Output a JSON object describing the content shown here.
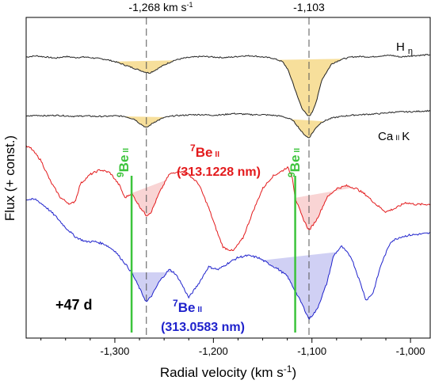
{
  "chart_data": {
    "type": "line",
    "xlabel": "Radial velocity (km s-1)",
    "xlabel_main": "Radial velocity (km s",
    "xlabel_sup": "-1",
    "xlabel_close": ")",
    "ylabel": "Flux (+ const.)",
    "xlim": [
      -1390,
      -980
    ],
    "x_ticks": [
      -1300,
      -1200,
      -1100,
      -1000
    ],
    "x_tick_labels": [
      "-1,300",
      "-1,200",
      "-1,100",
      "-1,000"
    ],
    "dashed_lines": [
      {
        "x": -1268,
        "label_main": "-1,268 km s",
        "label_sup": "-1"
      },
      {
        "x": -1103,
        "label_main": "-1,103",
        "label_sup": ""
      }
    ],
    "be9_marks": [
      {
        "x": -1283,
        "label_sup": "9",
        "label_main": "Be",
        "label_ion": "II"
      },
      {
        "x": -1117,
        "label_sup": "9",
        "label_main": "Be",
        "label_ion": "II"
      }
    ],
    "epoch_label": "+47 d",
    "series": [
      {
        "name": "H η",
        "name_main": "H",
        "name_sub": "η",
        "color": "#222222",
        "fill_color": "#f6d98a",
        "x": [
          -1390,
          -1380,
          -1370,
          -1360,
          -1350,
          -1340,
          -1330,
          -1320,
          -1310,
          -1300,
          -1290,
          -1280,
          -1270,
          -1265,
          -1260,
          -1250,
          -1240,
          -1230,
          -1220,
          -1210,
          -1200,
          -1190,
          -1180,
          -1170,
          -1160,
          -1150,
          -1140,
          -1130,
          -1125,
          -1120,
          -1115,
          -1110,
          -1105,
          -1103,
          -1100,
          -1095,
          -1090,
          -1080,
          -1070,
          -1060,
          -1050,
          -1040,
          -1030,
          -1020,
          -1010,
          -1000,
          -990,
          -980
        ],
        "flux": [
          0.0,
          0.02,
          0.0,
          -0.02,
          0.01,
          -0.01,
          0.0,
          -0.02,
          -0.04,
          -0.08,
          -0.14,
          -0.2,
          -0.26,
          -0.28,
          -0.24,
          -0.14,
          -0.06,
          -0.02,
          0.0,
          0.01,
          0.0,
          -0.01,
          0.0,
          0.02,
          0.02,
          0.0,
          -0.02,
          -0.08,
          -0.2,
          -0.42,
          -0.68,
          -0.9,
          -1.02,
          -1.04,
          -0.98,
          -0.75,
          -0.4,
          -0.12,
          -0.04,
          0.0,
          0.01,
          0.0,
          0.02,
          0.03,
          0.0,
          0.02,
          0.03,
          0.04
        ]
      },
      {
        "name": "Ca II K",
        "name_main": "Ca",
        "name_ion": "II",
        "name_after": "K",
        "color": "#222222",
        "fill_color": "#f6d98a",
        "x": [
          -1390,
          -1380,
          -1370,
          -1360,
          -1350,
          -1340,
          -1330,
          -1320,
          -1310,
          -1300,
          -1290,
          -1280,
          -1275,
          -1268,
          -1260,
          -1250,
          -1240,
          -1230,
          -1220,
          -1210,
          -1200,
          -1190,
          -1180,
          -1170,
          -1160,
          -1150,
          -1140,
          -1130,
          -1120,
          -1115,
          -1110,
          -1105,
          -1103,
          -1100,
          -1095,
          -1090,
          -1080,
          -1070,
          -1060,
          -1050,
          -1040,
          -1030,
          -1020,
          -1010,
          -1000,
          -990,
          -980
        ],
        "flux": [
          0.0,
          0.02,
          0.01,
          0.02,
          0.01,
          0.0,
          0.01,
          0.0,
          0.0,
          0.01,
          0.0,
          -0.05,
          -0.12,
          -0.2,
          -0.1,
          -0.02,
          0.01,
          0.02,
          0.03,
          0.03,
          0.02,
          0.03,
          0.05,
          0.04,
          0.03,
          0.03,
          0.02,
          0.0,
          -0.06,
          -0.16,
          -0.28,
          -0.36,
          -0.38,
          -0.3,
          -0.18,
          -0.1,
          -0.03,
          0.0,
          0.02,
          0.03,
          0.04,
          0.05,
          0.07,
          0.08,
          0.08,
          0.09,
          0.1
        ]
      },
      {
        "name": "7Be II (313.1228 nm)",
        "name_sup": "7",
        "name_main": "Be",
        "name_ion": "II",
        "wavelength": "(313.1228 nm)",
        "color": "#e31a1c",
        "fill_color": "#f8cccc",
        "x": [
          -1390,
          -1385,
          -1375,
          -1365,
          -1355,
          -1345,
          -1340,
          -1335,
          -1325,
          -1315,
          -1305,
          -1295,
          -1290,
          -1283,
          -1275,
          -1268,
          -1263,
          -1255,
          -1245,
          -1235,
          -1225,
          -1215,
          -1205,
          -1195,
          -1190,
          -1180,
          -1170,
          -1160,
          -1150,
          -1140,
          -1130,
          -1125,
          -1120,
          -1117,
          -1110,
          -1103,
          -1095,
          -1085,
          -1075,
          -1065,
          -1055,
          -1045,
          -1035,
          -1025,
          -1015,
          -1005,
          -995,
          -980
        ],
        "flux": [
          0.0,
          -0.02,
          -0.15,
          -0.38,
          -0.55,
          -0.62,
          -0.58,
          -0.4,
          -0.3,
          -0.25,
          -0.28,
          -0.42,
          -0.55,
          -0.5,
          -0.64,
          -0.74,
          -0.7,
          -0.5,
          -0.3,
          -0.26,
          -0.3,
          -0.4,
          -0.65,
          -0.95,
          -1.08,
          -1.12,
          -0.98,
          -0.7,
          -0.45,
          -0.32,
          -0.26,
          -0.22,
          -0.32,
          -0.55,
          -0.75,
          -0.9,
          -0.78,
          -0.55,
          -0.45,
          -0.42,
          -0.45,
          -0.52,
          -0.62,
          -0.7,
          -0.66,
          -0.6,
          -0.62,
          -0.62
        ]
      },
      {
        "name": "7Be II (313.0583 nm)",
        "name_sup": "7",
        "name_main": "Be",
        "name_ion": "II",
        "wavelength": "(313.0583 nm)",
        "color": "#1f22cc",
        "fill_color": "#c8c8f2",
        "x": [
          -1390,
          -1380,
          -1370,
          -1360,
          -1350,
          -1340,
          -1330,
          -1320,
          -1310,
          -1300,
          -1290,
          -1283,
          -1275,
          -1268,
          -1262,
          -1255,
          -1245,
          -1240,
          -1235,
          -1225,
          -1215,
          -1205,
          -1195,
          -1185,
          -1175,
          -1165,
          -1155,
          -1145,
          -1135,
          -1125,
          -1117,
          -1110,
          -1103,
          -1095,
          -1085,
          -1078,
          -1070,
          -1060,
          -1050,
          -1045,
          -1038,
          -1030,
          -1020,
          -1010,
          -1000,
          -990,
          -980
        ],
        "flux": [
          0.0,
          0.0,
          -0.08,
          -0.18,
          -0.3,
          -0.4,
          -0.45,
          -0.45,
          -0.48,
          -0.55,
          -0.68,
          -0.78,
          -0.95,
          -1.1,
          -1.02,
          -0.88,
          -0.75,
          -0.78,
          -0.85,
          -1.05,
          -0.9,
          -0.72,
          -0.75,
          -0.68,
          -0.62,
          -0.6,
          -0.62,
          -0.68,
          -0.74,
          -0.82,
          -0.98,
          -1.12,
          -1.28,
          -1.18,
          -0.9,
          -0.6,
          -0.5,
          -0.62,
          -0.92,
          -1.08,
          -1.0,
          -0.7,
          -0.45,
          -0.4,
          -0.38,
          -0.37,
          -0.36
        ]
      }
    ]
  }
}
